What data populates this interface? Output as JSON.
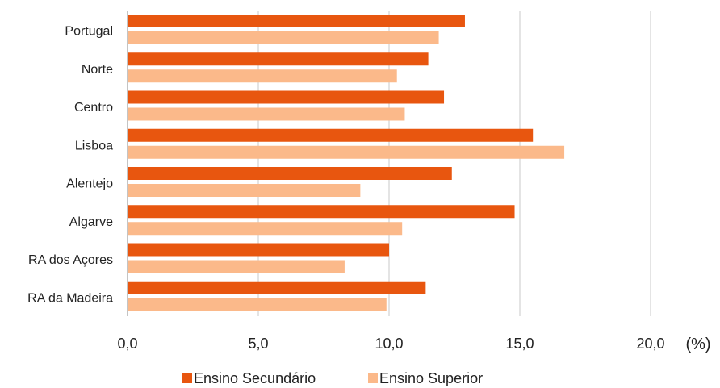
{
  "chart_data": {
    "type": "bar",
    "orientation": "horizontal",
    "categories": [
      "Portugal",
      "Norte",
      "Centro",
      "Lisboa",
      "Alentejo",
      "Algarve",
      "RA dos Açores",
      "RA da Madeira"
    ],
    "series": [
      {
        "name": "Ensino Secundário",
        "color": "#E8560F",
        "values": [
          12.9,
          11.5,
          12.1,
          15.5,
          12.4,
          14.8,
          10.0,
          11.4
        ]
      },
      {
        "name": "Ensino Superior",
        "color": "#FBB98A",
        "values": [
          11.9,
          10.3,
          10.6,
          16.7,
          8.9,
          10.5,
          8.3,
          9.9
        ]
      }
    ],
    "title": "",
    "xlabel": "",
    "ylabel": "",
    "unit": "(%)",
    "xlim": [
      0,
      20
    ],
    "xticks": [
      "0,0",
      "5,0",
      "10,0",
      "15,0",
      "20,0"
    ],
    "grid": true,
    "legend_position": "bottom"
  }
}
